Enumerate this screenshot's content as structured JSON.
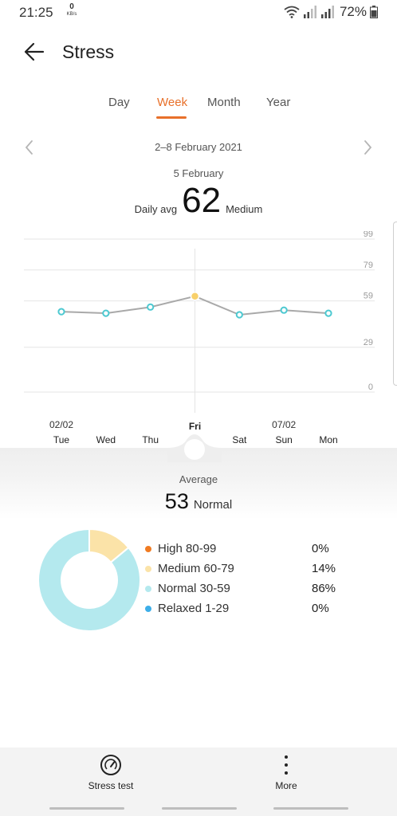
{
  "status_bar": {
    "time": "21:25",
    "net_speed": "0",
    "net_unit": "KB/s",
    "battery": "72%"
  },
  "header": {
    "title": "Stress"
  },
  "tabs": [
    {
      "label": "Day",
      "active": false
    },
    {
      "label": "Week",
      "active": true
    },
    {
      "label": "Month",
      "active": false
    },
    {
      "label": "Year",
      "active": false
    }
  ],
  "date_nav": {
    "range": "2–8 February 2021"
  },
  "selected": {
    "date": "5 February",
    "label": "Daily avg",
    "value": "62",
    "level": "Medium"
  },
  "chart_data": {
    "type": "line",
    "title": "",
    "xlabel": "",
    "ylabel": "",
    "categories": [
      "Tue",
      "Wed",
      "Thu",
      "Fri",
      "Sat",
      "Sun",
      "Mon"
    ],
    "date_labels": [
      "02/02",
      "",
      "",
      "",
      "",
      "07/02",
      ""
    ],
    "highlight_category": "Fri",
    "series": [
      {
        "values": [
          52,
          51,
          55,
          62,
          50,
          53,
          51
        ]
      }
    ],
    "yticks": [
      0,
      29,
      59,
      79,
      99
    ],
    "ylim": [
      0,
      99
    ],
    "grid": true
  },
  "average": {
    "label": "Average",
    "value": "53",
    "level": "Normal"
  },
  "distribution": [
    {
      "label": "High 80-99",
      "percent": "0%",
      "value": 0,
      "color": "#f07b22"
    },
    {
      "label": "Medium 60-79",
      "percent": "14%",
      "value": 14,
      "color": "#fbe3a8"
    },
    {
      "label": "Normal 30-59",
      "percent": "86%",
      "value": 86,
      "color": "#b4e9ee"
    },
    {
      "label": "Relaxed 1-29",
      "percent": "0%",
      "value": 0,
      "color": "#3daee8"
    }
  ],
  "colors": {
    "accent": "#e8702a",
    "line": "#a9a9a9",
    "point": "#4dc9d1",
    "highlight_point": "#f8d06a"
  },
  "bottom_bar": {
    "stress_test": "Stress test",
    "more": "More"
  }
}
